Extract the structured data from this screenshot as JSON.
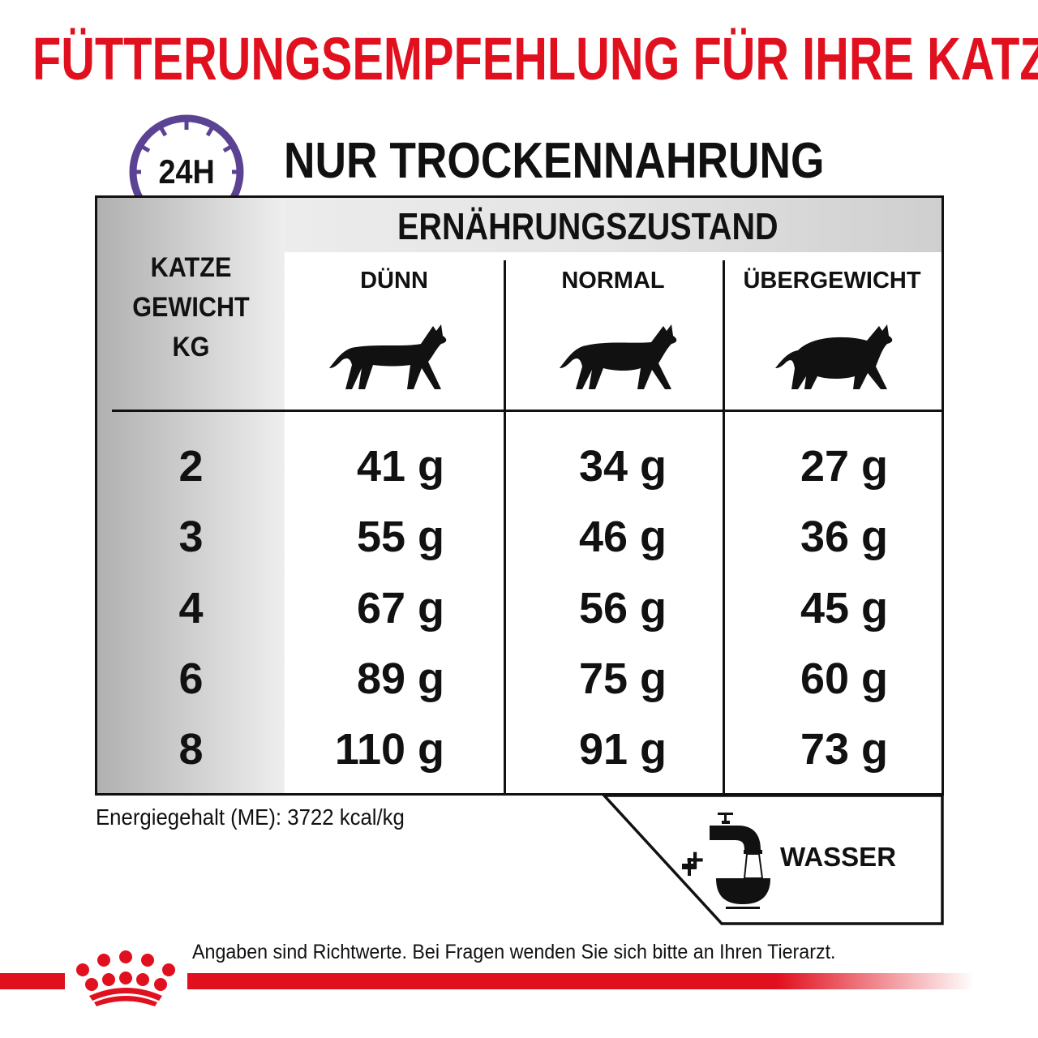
{
  "title": "FÜTTERUNGSEMPFEHLUNG FÜR IHRE KATZE",
  "clock_label": "24H",
  "subtitle": "NUR TROCKENNAHRUNG",
  "band_label": "ERNÄHRUNGSZUSTAND",
  "row_header": [
    "KATZE",
    "GEWICHT",
    "KG"
  ],
  "columns": [
    "DÜNN",
    "NORMAL",
    "ÜBERGEWICHT"
  ],
  "rows": [
    {
      "kg": "2",
      "values": [
        "41 g",
        "34 g",
        "27 g"
      ]
    },
    {
      "kg": "3",
      "values": [
        "55 g",
        "46 g",
        "36 g"
      ]
    },
    {
      "kg": "4",
      "values": [
        "67 g",
        "56 g",
        "45 g"
      ]
    },
    {
      "kg": "6",
      "values": [
        "89 g",
        "75 g",
        "60 g"
      ]
    },
    {
      "kg": "8",
      "values": [
        "110 g",
        "91 g",
        "73 g"
      ]
    }
  ],
  "energy": "Energiegehalt (ME): 3722 kcal/kg",
  "water": {
    "plus": "+",
    "label": "WASSER"
  },
  "footer": "Angaben sind Richtwerte. Bei Fragen wenden Sie sich bitte an Ihren Tierarzt.",
  "colors": {
    "brand_red": "#e1101f",
    "clock_purple": "#5b4394"
  }
}
